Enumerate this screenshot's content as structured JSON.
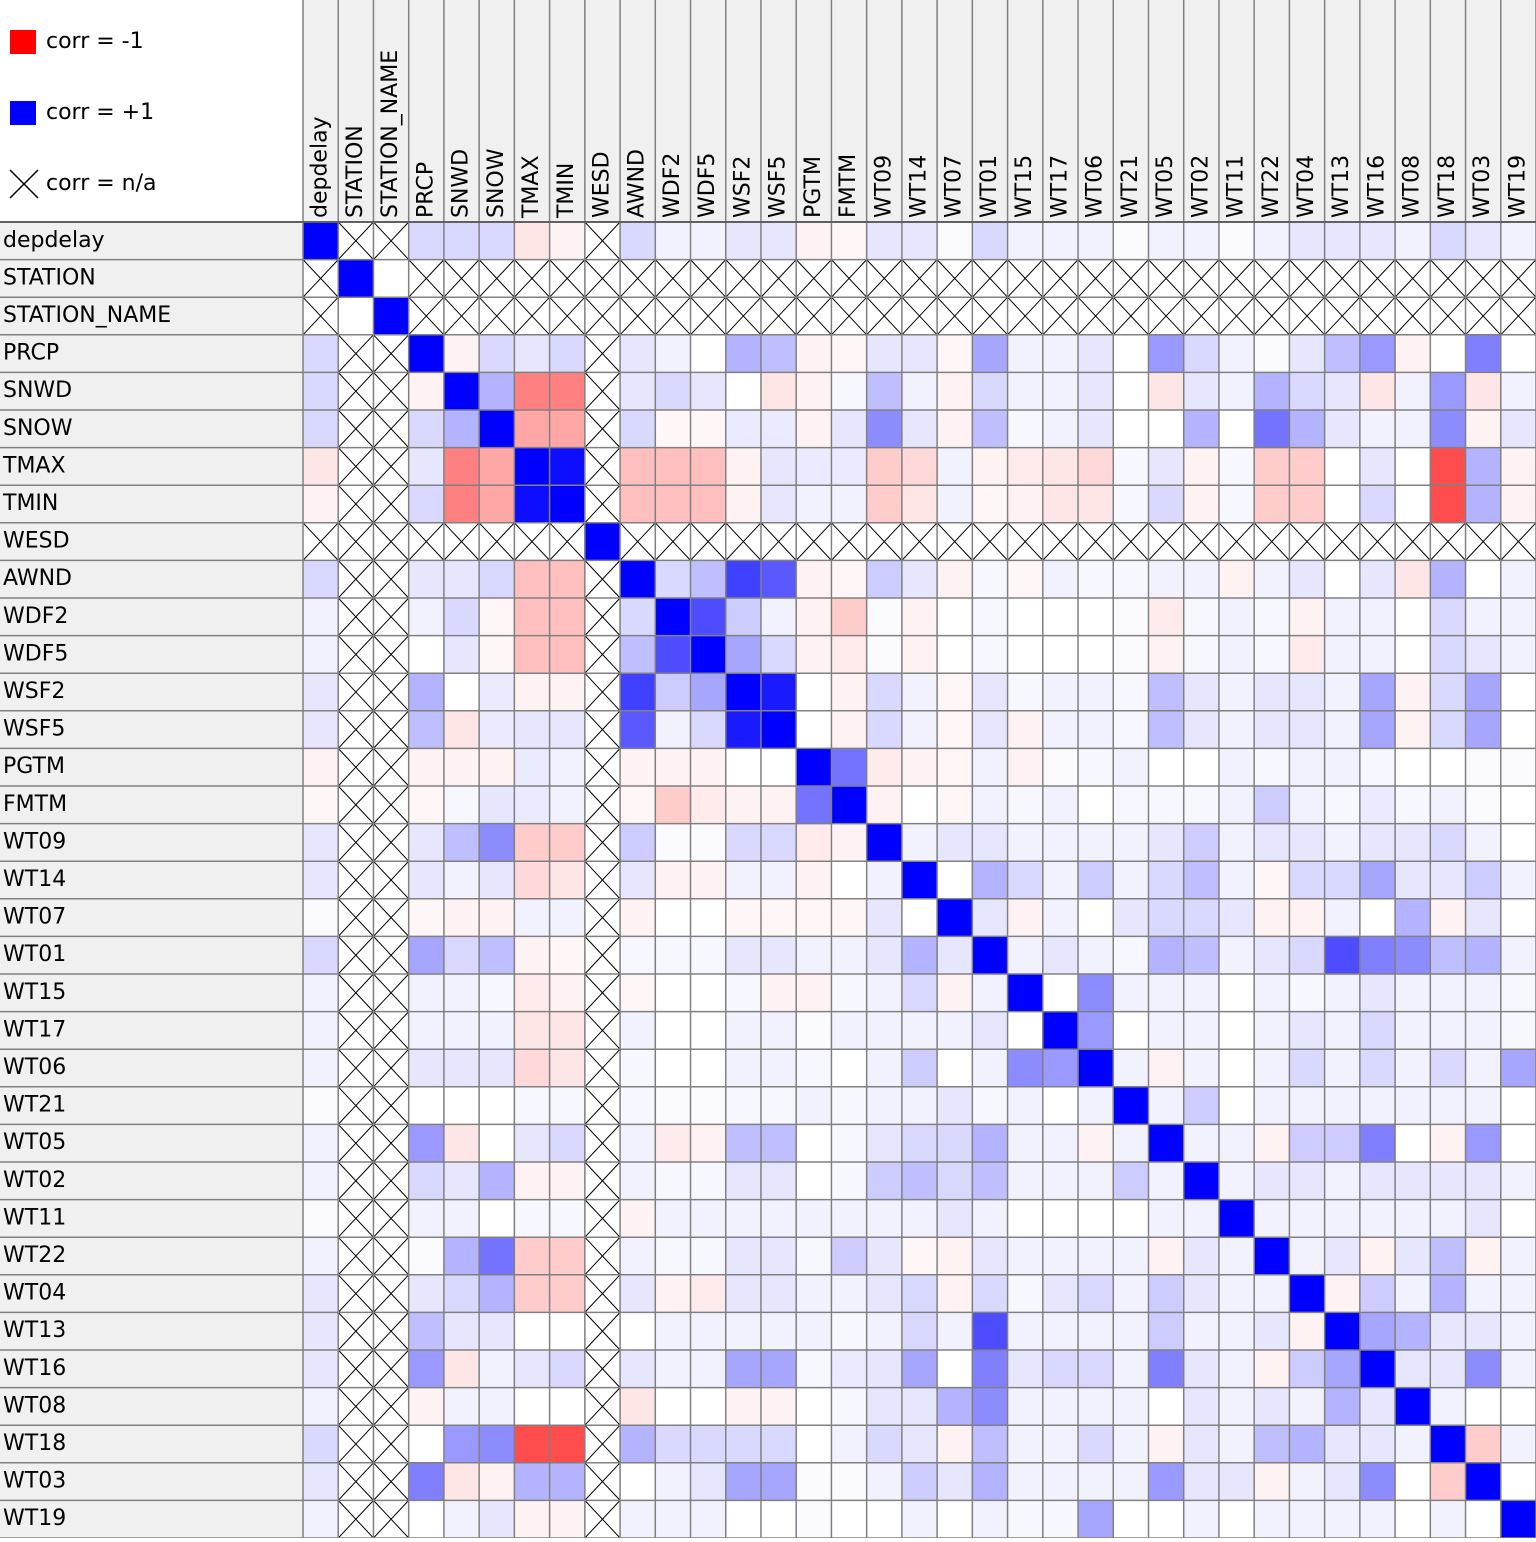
{
  "chart_data": {
    "type": "heatmap",
    "legend": [
      {
        "label": "corr = -1",
        "color": "#ff0000",
        "kind": "square"
      },
      {
        "label": "corr = +1",
        "color": "#0000ff",
        "kind": "square"
      },
      {
        "label": "corr = n/a",
        "color": "#000000",
        "kind": "cross"
      }
    ],
    "negative_color": "#ff0000",
    "positive_color": "#0000ff",
    "variables": [
      "depdelay",
      "STATION",
      "STATION_NAME",
      "PRCP",
      "SNWD",
      "SNOW",
      "TMAX",
      "TMIN",
      "WESD",
      "AWND",
      "WDF2",
      "WDF5",
      "WSF2",
      "WSF5",
      "PGTM",
      "FMTM",
      "WT09",
      "WT14",
      "WT07",
      "WT01",
      "WT15",
      "WT17",
      "WT06",
      "WT21",
      "WT05",
      "WT02",
      "WT11",
      "WT22",
      "WT04",
      "WT13",
      "WT16",
      "WT08",
      "WT18",
      "WT03",
      "WT19"
    ],
    "matrix": [
      [
        1,
        null,
        null,
        0.15,
        0.15,
        0.15,
        -0.1,
        -0.05,
        null,
        0.15,
        0.05,
        0.05,
        0.1,
        0.1,
        -0.05,
        -0.03,
        0.1,
        0.1,
        0.02,
        0.15,
        0.05,
        0.05,
        0.05,
        0.02,
        0.05,
        0.05,
        0.02,
        0.05,
        0.1,
        0.1,
        0.1,
        0.05,
        0.15,
        0.1,
        0.05
      ],
      [
        null,
        1,
        0,
        null,
        null,
        null,
        null,
        null,
        null,
        null,
        null,
        null,
        null,
        null,
        null,
        null,
        null,
        null,
        null,
        null,
        null,
        null,
        null,
        null,
        null,
        null,
        null,
        null,
        null,
        null,
        null,
        null,
        null,
        null,
        null
      ],
      [
        null,
        0,
        1,
        null,
        null,
        null,
        null,
        null,
        null,
        null,
        null,
        null,
        null,
        null,
        null,
        null,
        null,
        null,
        null,
        null,
        null,
        null,
        null,
        null,
        null,
        null,
        null,
        null,
        null,
        null,
        null,
        null,
        null,
        null,
        null
      ],
      [
        0.15,
        null,
        null,
        1,
        -0.05,
        0.15,
        0.1,
        0.15,
        null,
        0.1,
        0.05,
        0,
        0.3,
        0.25,
        -0.05,
        -0.03,
        0.1,
        0.1,
        -0.03,
        0.35,
        0.05,
        0.05,
        0.1,
        0,
        0.4,
        0.15,
        0.05,
        0.02,
        0.1,
        0.25,
        0.4,
        -0.05,
        0,
        0.5,
        0
      ],
      [
        0.15,
        null,
        null,
        -0.05,
        1,
        0.3,
        -0.5,
        -0.5,
        null,
        0.1,
        0.15,
        0.1,
        0,
        -0.1,
        -0.05,
        0.03,
        0.25,
        0.05,
        -0.05,
        0.15,
        0.05,
        0.05,
        0.1,
        0,
        -0.1,
        0.1,
        0.05,
        0.3,
        0.15,
        0.1,
        -0.1,
        0.05,
        0.4,
        -0.1,
        0.05
      ],
      [
        0.15,
        null,
        null,
        0.15,
        0.3,
        1,
        -0.35,
        -0.35,
        null,
        0.15,
        -0.03,
        -0.03,
        0.08,
        0.08,
        -0.05,
        0.1,
        0.45,
        0.1,
        -0.05,
        0.25,
        0.03,
        0.05,
        0.1,
        0,
        0,
        0.3,
        0,
        0.55,
        0.3,
        0.1,
        0.05,
        0.05,
        0.45,
        -0.05,
        0.1
      ],
      [
        -0.1,
        null,
        null,
        0.1,
        -0.5,
        -0.35,
        1,
        0.95,
        null,
        -0.25,
        -0.25,
        -0.25,
        -0.05,
        0.1,
        0.08,
        0.08,
        -0.2,
        -0.15,
        0.05,
        -0.05,
        -0.08,
        -0.1,
        -0.15,
        0.03,
        0.1,
        -0.05,
        0.03,
        -0.2,
        -0.2,
        0,
        0.1,
        0,
        -0.7,
        0.3,
        -0.05
      ],
      [
        -0.05,
        null,
        null,
        0.15,
        -0.5,
        -0.35,
        0.95,
        1,
        null,
        -0.25,
        -0.25,
        -0.25,
        -0.05,
        0.1,
        0.05,
        0.05,
        -0.2,
        -0.1,
        0.05,
        -0.03,
        -0.05,
        -0.1,
        -0.1,
        0.03,
        0.15,
        -0.05,
        0.03,
        -0.2,
        -0.2,
        0,
        0.15,
        0,
        -0.7,
        0.3,
        -0.05
      ],
      [
        null,
        null,
        null,
        null,
        null,
        null,
        null,
        null,
        1,
        null,
        null,
        null,
        null,
        null,
        null,
        null,
        null,
        null,
        null,
        null,
        null,
        null,
        null,
        null,
        null,
        null,
        null,
        null,
        null,
        null,
        null,
        null,
        null,
        null,
        null
      ],
      [
        0.15,
        null,
        null,
        0.1,
        0.1,
        0.15,
        -0.25,
        -0.25,
        null,
        1,
        0.15,
        0.25,
        0.75,
        0.65,
        -0.05,
        -0.03,
        0.2,
        0.1,
        -0.05,
        0.03,
        -0.03,
        0.05,
        0.03,
        0.03,
        0.05,
        0.05,
        -0.05,
        0.05,
        0.1,
        0,
        0.1,
        -0.1,
        0.3,
        0,
        0.05
      ],
      [
        0.05,
        null,
        null,
        0.05,
        0.15,
        -0.03,
        -0.25,
        -0.25,
        null,
        0.15,
        1,
        0.7,
        0.2,
        0.05,
        -0.05,
        -0.2,
        0.02,
        -0.05,
        0,
        0.03,
        0,
        0,
        0,
        0.02,
        -0.08,
        0.03,
        0.05,
        0.03,
        -0.05,
        0.05,
        0.05,
        0,
        0.15,
        0.05,
        0.05
      ],
      [
        0.05,
        null,
        null,
        0,
        0.1,
        -0.03,
        -0.25,
        -0.25,
        null,
        0.25,
        0.7,
        1,
        0.35,
        0.15,
        -0.05,
        -0.08,
        0.02,
        -0.05,
        0,
        0.03,
        0,
        0,
        0,
        0.02,
        -0.05,
        0.03,
        0.05,
        0.03,
        -0.08,
        0.05,
        0.05,
        0,
        0.15,
        0.1,
        0.05
      ],
      [
        0.1,
        null,
        null,
        0.3,
        0,
        0.08,
        -0.05,
        -0.05,
        null,
        0.75,
        0.2,
        0.35,
        1,
        0.9,
        0,
        -0.05,
        0.15,
        0.05,
        -0.03,
        0.1,
        0.03,
        0.05,
        0.05,
        0.03,
        0.25,
        0.1,
        0.05,
        0.1,
        0.1,
        0.05,
        0.35,
        -0.05,
        0.15,
        0.35,
        0
      ],
      [
        0.1,
        null,
        null,
        0.25,
        -0.1,
        0.08,
        0.1,
        0.1,
        null,
        0.65,
        0.05,
        0.15,
        0.9,
        1,
        0,
        -0.05,
        0.15,
        0.05,
        -0.03,
        0.1,
        -0.05,
        0.05,
        0.05,
        0.03,
        0.25,
        0.1,
        0.05,
        0.1,
        0.1,
        0.05,
        0.35,
        -0.05,
        0.15,
        0.35,
        0
      ],
      [
        -0.05,
        null,
        null,
        -0.05,
        -0.05,
        -0.05,
        0.08,
        0.05,
        null,
        -0.05,
        -0.05,
        -0.05,
        0,
        0,
        1,
        0.55,
        -0.08,
        -0.05,
        -0.03,
        0.05,
        -0.05,
        0.02,
        0.03,
        0.05,
        0,
        0,
        0.05,
        0.03,
        0.05,
        0.05,
        0.03,
        0,
        0,
        0.02,
        0.02
      ],
      [
        -0.03,
        null,
        null,
        -0.03,
        0.03,
        0.1,
        0.08,
        0.05,
        null,
        -0.03,
        -0.2,
        -0.08,
        -0.05,
        -0.05,
        0.55,
        1,
        -0.05,
        0,
        -0.03,
        0.05,
        0.03,
        0.05,
        0,
        0.03,
        0.03,
        0.03,
        0.05,
        0.2,
        0.05,
        0.03,
        0.08,
        0.03,
        0.05,
        0.02,
        0
      ],
      [
        0.1,
        null,
        null,
        0.1,
        0.25,
        0.45,
        -0.2,
        -0.2,
        null,
        0.2,
        0.02,
        0.02,
        0.15,
        0.15,
        -0.08,
        -0.05,
        1,
        0.05,
        0.1,
        0.1,
        0.05,
        0.05,
        0.05,
        0.05,
        0.1,
        0.2,
        0.05,
        0.1,
        0.1,
        0.05,
        0.1,
        0.1,
        0.15,
        0.05,
        0
      ],
      [
        0.1,
        null,
        null,
        0.1,
        0.05,
        0.1,
        -0.15,
        -0.1,
        null,
        0.1,
        -0.05,
        -0.05,
        0.05,
        0.05,
        -0.05,
        0,
        0.05,
        1,
        0,
        0.3,
        0.15,
        0.05,
        0.2,
        0.05,
        0.15,
        0.25,
        0.05,
        -0.03,
        0.15,
        0.15,
        0.35,
        0.1,
        0.1,
        0.2,
        0.05
      ],
      [
        0.02,
        null,
        null,
        -0.03,
        -0.05,
        -0.05,
        0.05,
        0.05,
        null,
        -0.05,
        0,
        0,
        -0.03,
        -0.03,
        -0.03,
        -0.03,
        0.1,
        0,
        1,
        0.1,
        -0.05,
        0.05,
        0,
        0.1,
        0.15,
        0.15,
        0.1,
        -0.05,
        -0.05,
        0.05,
        0,
        0.3,
        -0.05,
        0.1,
        0
      ],
      [
        0.15,
        null,
        null,
        0.35,
        0.15,
        0.25,
        -0.05,
        -0.03,
        null,
        0.03,
        0.03,
        0.03,
        0.1,
        0.1,
        0.05,
        0.05,
        0.1,
        0.3,
        0.1,
        1,
        0.05,
        0.1,
        0.05,
        0.03,
        0.3,
        0.25,
        0.05,
        0.1,
        0.15,
        0.7,
        0.5,
        0.45,
        0.25,
        0.3,
        0.05
      ],
      [
        0.05,
        null,
        null,
        0.05,
        0.05,
        0.03,
        -0.08,
        -0.05,
        null,
        -0.03,
        0,
        0,
        0.03,
        -0.05,
        -0.05,
        0.03,
        0.05,
        0.15,
        -0.05,
        0.05,
        1,
        0,
        0.45,
        0.05,
        0.05,
        0.05,
        0,
        0.05,
        0.03,
        0.05,
        0.1,
        0.05,
        0.05,
        0.05,
        0.03
      ],
      [
        0.05,
        null,
        null,
        0.05,
        0.05,
        0.05,
        -0.1,
        -0.1,
        null,
        0.05,
        0,
        0,
        0.05,
        0.05,
        0.02,
        0.05,
        0.05,
        0.05,
        0.05,
        0.1,
        0,
        1,
        0.4,
        0,
        0.05,
        0.05,
        0,
        0.05,
        0.1,
        0.05,
        0.15,
        0.05,
        0.05,
        0.05,
        0.03
      ],
      [
        0.05,
        null,
        null,
        0.1,
        0.1,
        0.1,
        -0.15,
        -0.1,
        null,
        0.03,
        0,
        0,
        0.05,
        0.05,
        0.03,
        0,
        0.05,
        0.2,
        0,
        0.05,
        0.45,
        0.4,
        1,
        0.05,
        -0.05,
        0.05,
        0,
        0.05,
        0.15,
        0.05,
        0.15,
        0.05,
        0.15,
        0.05,
        0.35
      ],
      [
        0.02,
        null,
        null,
        0,
        0,
        0,
        0.03,
        0.03,
        null,
        0.03,
        0.02,
        0.02,
        0.03,
        0.03,
        0.05,
        0.03,
        0.05,
        0.05,
        0.1,
        0.03,
        0.05,
        0,
        0.05,
        1,
        0.05,
        0.2,
        0,
        0.05,
        0.05,
        0.05,
        0.05,
        0.05,
        0.05,
        0.05,
        0
      ],
      [
        0.05,
        null,
        null,
        0.4,
        -0.1,
        0,
        0.1,
        0.15,
        null,
        0.05,
        -0.08,
        -0.05,
        0.25,
        0.25,
        0,
        0.03,
        0.1,
        0.15,
        0.15,
        0.3,
        0.05,
        0.05,
        -0.05,
        0.05,
        1,
        0.05,
        0.05,
        -0.05,
        0.2,
        0.2,
        0.5,
        0,
        -0.05,
        0.4,
        0
      ],
      [
        0.05,
        null,
        null,
        0.15,
        0.1,
        0.3,
        -0.05,
        -0.05,
        null,
        0.05,
        0.03,
        0.03,
        0.1,
        0.1,
        0,
        0.03,
        0.2,
        0.25,
        0.15,
        0.25,
        0.05,
        0.05,
        0.05,
        0.2,
        0.05,
        1,
        0.05,
        0.1,
        0.1,
        0.05,
        0.1,
        0.1,
        0.1,
        0.1,
        0.05
      ],
      [
        0.02,
        null,
        null,
        0.05,
        0.05,
        0,
        0.03,
        0.03,
        null,
        -0.05,
        0.05,
        0.05,
        0.05,
        0.05,
        0.05,
        0.05,
        0.05,
        0.05,
        0.1,
        0.05,
        0,
        0,
        0,
        0,
        0.05,
        0.05,
        1,
        0.05,
        0.05,
        0.05,
        0.05,
        0.05,
        0.05,
        0.1,
        0
      ],
      [
        0.05,
        null,
        null,
        0.02,
        0.3,
        0.55,
        -0.2,
        -0.2,
        null,
        0.05,
        0.03,
        0.03,
        0.1,
        0.1,
        0.03,
        0.2,
        0.1,
        -0.03,
        -0.05,
        0.1,
        0.05,
        0.05,
        0.05,
        0.05,
        -0.05,
        0.1,
        0.05,
        1,
        0.05,
        0.1,
        -0.05,
        0.1,
        0.25,
        -0.05,
        0.05
      ],
      [
        0.1,
        null,
        null,
        0.1,
        0.15,
        0.3,
        -0.2,
        -0.2,
        null,
        0.1,
        -0.05,
        -0.08,
        0.1,
        0.1,
        0.05,
        0.05,
        0.1,
        0.15,
        -0.05,
        0.15,
        0.03,
        0.1,
        0.15,
        0.05,
        0.2,
        0.1,
        0.05,
        0.05,
        1,
        -0.05,
        0.2,
        0.05,
        0.3,
        0.05,
        0.05
      ],
      [
        0.1,
        null,
        null,
        0.25,
        0.1,
        0.1,
        0,
        0,
        null,
        0,
        0.05,
        0.05,
        0.05,
        0.05,
        0.05,
        0.03,
        0.05,
        0.15,
        0.05,
        0.7,
        0.05,
        0.05,
        0.05,
        0.05,
        0.2,
        0.05,
        0.05,
        0.1,
        -0.05,
        1,
        0.35,
        0.3,
        0.1,
        0.1,
        0.05
      ],
      [
        0.1,
        null,
        null,
        0.4,
        -0.1,
        0.05,
        0.1,
        0.15,
        null,
        0.1,
        0.05,
        0.05,
        0.35,
        0.35,
        0.03,
        0.08,
        0.1,
        0.35,
        0,
        0.5,
        0.1,
        0.15,
        0.15,
        0.05,
        0.5,
        0.1,
        0.05,
        -0.05,
        0.2,
        0.35,
        1,
        0.1,
        0.1,
        0.45,
        0.05
      ],
      [
        0.05,
        null,
        null,
        -0.05,
        0.05,
        0.05,
        0,
        0,
        null,
        -0.1,
        0,
        0,
        -0.05,
        -0.05,
        0,
        0.03,
        0.1,
        0.1,
        0.3,
        0.45,
        0.05,
        0.05,
        0.05,
        0.05,
        0,
        0.1,
        0.05,
        0.1,
        0.05,
        0.3,
        0.1,
        1,
        0.05,
        0,
        0
      ],
      [
        0.15,
        null,
        null,
        0,
        0.4,
        0.45,
        -0.7,
        -0.7,
        null,
        0.3,
        0.15,
        0.15,
        0.15,
        0.15,
        0,
        0.05,
        0.15,
        0.1,
        -0.05,
        0.25,
        0.05,
        0.05,
        0.15,
        0.05,
        -0.05,
        0.1,
        0.05,
        0.25,
        0.3,
        0.1,
        0.1,
        0.05,
        1,
        -0.2,
        0.05
      ],
      [
        0.1,
        null,
        null,
        0.5,
        -0.1,
        -0.05,
        0.3,
        0.3,
        null,
        0,
        0.05,
        0.1,
        0.35,
        0.35,
        0.02,
        0.02,
        0.05,
        0.2,
        0.1,
        0.3,
        0.05,
        0.05,
        0.05,
        0.05,
        0.4,
        0.1,
        0.1,
        -0.05,
        0.05,
        0.1,
        0.45,
        0,
        -0.2,
        1,
        0
      ],
      [
        0.05,
        null,
        null,
        0,
        0.05,
        0.1,
        -0.05,
        -0.05,
        null,
        0.05,
        0.05,
        0.05,
        0,
        0,
        0.02,
        0,
        0,
        0.05,
        0,
        0.05,
        0.03,
        0.03,
        0.35,
        0,
        0,
        0.05,
        0,
        0.05,
        0.05,
        0.05,
        0.05,
        0,
        0.05,
        0,
        1
      ]
    ]
  }
}
